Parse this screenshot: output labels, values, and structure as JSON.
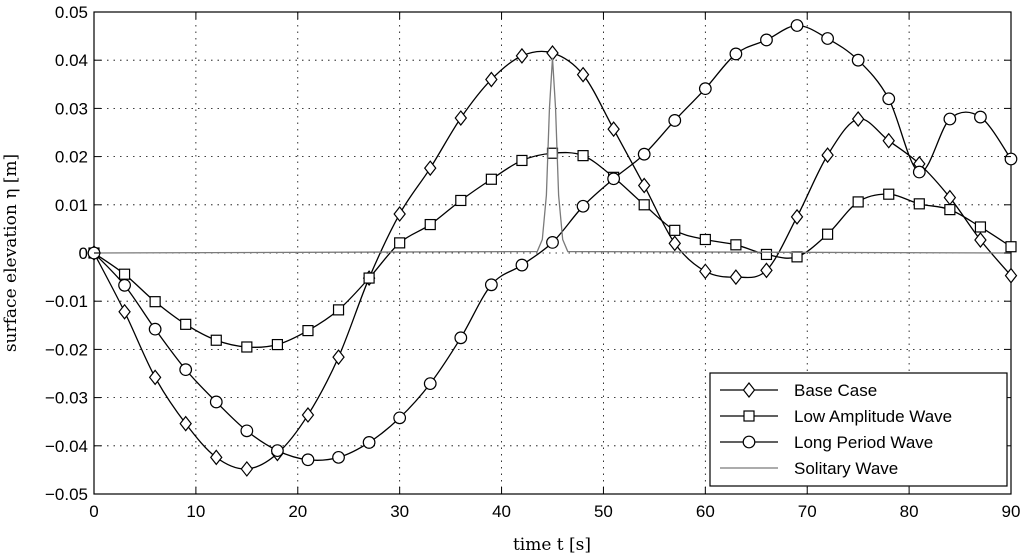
{
  "chart_data": {
    "type": "line",
    "xlabel": "time t [s]",
    "ylabel": "surface elevation η [m]",
    "xlim": [
      0,
      90
    ],
    "ylim": [
      -0.05,
      0.05
    ],
    "xticks": [
      "0",
      "10",
      "20",
      "30",
      "40",
      "50",
      "60",
      "70",
      "80",
      "90"
    ],
    "yticks": [
      "0.05",
      "0.04",
      "0.03",
      "0.02",
      "0.01",
      "0",
      "-0.01",
      "-0.02",
      "-0.03",
      "-0.04",
      "-0.05"
    ],
    "grid": true,
    "legend_position": "bottom-right",
    "series": [
      {
        "name": "Base Case",
        "marker": "diamond",
        "color": "#000000",
        "x": [
          0,
          3,
          6,
          9,
          12,
          15,
          18,
          21,
          24,
          27,
          30,
          33,
          36,
          39,
          42,
          45,
          48,
          51,
          54,
          57,
          60,
          63,
          66,
          69,
          72,
          75,
          78,
          81,
          84,
          87,
          90
        ],
        "y": [
          0.0,
          -0.0122,
          -0.0258,
          -0.0354,
          -0.0424,
          -0.0448,
          -0.0416,
          -0.0336,
          -0.0216,
          -0.0052,
          0.0081,
          0.0176,
          0.028,
          0.036,
          0.0409,
          0.0415,
          0.037,
          0.0257,
          0.014,
          0.002,
          -0.0038,
          -0.005,
          -0.0036,
          0.0075,
          0.0203,
          0.0278,
          0.0233,
          0.0185,
          0.0115,
          0.0027,
          -0.0047
        ]
      },
      {
        "name": "Low Amplitude Wave",
        "marker": "square",
        "color": "#000000",
        "x": [
          0,
          3,
          6,
          9,
          12,
          15,
          18,
          21,
          24,
          27,
          30,
          33,
          36,
          39,
          42,
          45,
          48,
          51,
          54,
          57,
          60,
          63,
          66,
          69,
          72,
          75,
          78,
          81,
          84,
          87,
          90
        ],
        "y": [
          0.0,
          -0.0044,
          -0.0101,
          -0.0148,
          -0.0181,
          -0.0195,
          -0.019,
          -0.0161,
          -0.0118,
          -0.0052,
          0.0021,
          0.0059,
          0.0109,
          0.0153,
          0.0192,
          0.0207,
          0.0202,
          0.0157,
          0.01,
          0.0047,
          0.0028,
          0.0017,
          -0.0003,
          -0.0008,
          0.0039,
          0.0106,
          0.0122,
          0.0102,
          0.009,
          0.0054,
          0.0013
        ]
      },
      {
        "name": "Long Period Wave",
        "marker": "circle",
        "color": "#000000",
        "x": [
          0,
          3,
          6,
          9,
          12,
          15,
          18,
          21,
          24,
          27,
          30,
          33,
          36,
          39,
          42,
          45,
          48,
          51,
          54,
          57,
          60,
          63,
          66,
          69,
          72,
          75,
          78,
          81,
          84,
          87,
          90
        ],
        "y": [
          0.0,
          -0.0067,
          -0.0158,
          -0.0242,
          -0.0309,
          -0.0369,
          -0.041,
          -0.0429,
          -0.0424,
          -0.0393,
          -0.0342,
          -0.0271,
          -0.0176,
          -0.0066,
          -0.0025,
          0.0022,
          0.0097,
          0.0154,
          0.0205,
          0.0275,
          0.0341,
          0.0413,
          0.0442,
          0.0472,
          0.0445,
          0.04,
          0.032,
          0.0168,
          0.0278,
          0.0282,
          0.0195
        ]
      },
      {
        "name": "Solitary Wave",
        "marker": "none",
        "color": "#7a7a7a",
        "x": [
          0,
          43.5,
          44.0,
          44.4,
          44.7,
          45.0,
          45.3,
          45.6,
          46.0,
          46.5,
          90
        ],
        "y": [
          0.0,
          0.0003,
          0.0028,
          0.012,
          0.03,
          0.0405,
          0.03,
          0.012,
          0.0028,
          0.0003,
          0.0
        ]
      }
    ]
  }
}
